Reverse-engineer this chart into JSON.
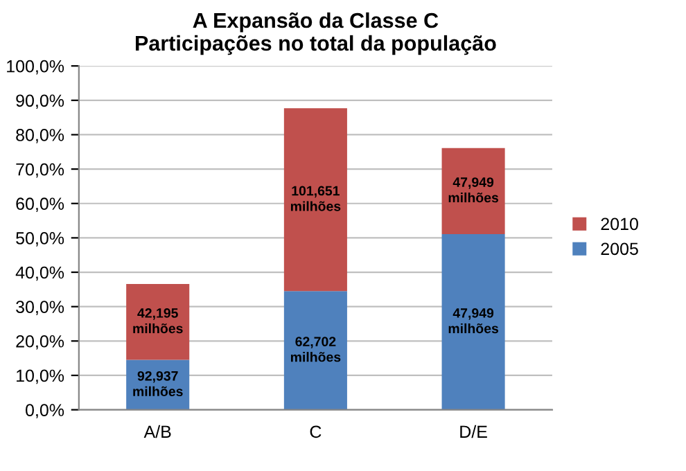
{
  "chart_data": {
    "type": "bar",
    "title": "A Expansão da Classe C\nParticipações no total da população",
    "categories": [
      "A/B",
      "C",
      "D/E"
    ],
    "stacked": true,
    "series": [
      {
        "name": "2005",
        "color": "#4f81bd",
        "values": [
          14.5,
          34.5,
          51.1
        ]
      },
      {
        "name": "2010",
        "color": "#c0504d",
        "values": [
          22.1,
          53.2,
          25.0
        ]
      }
    ],
    "annotations": [
      "92,937\nmilhões",
      "62,702\nmilhões",
      "47,949\nmilhões",
      "42,195\nmilhões",
      "101,651\nmilhões",
      "47,949\nmilhões"
    ],
    "ylim": [
      0,
      100
    ],
    "yticks": [
      {
        "value": 0,
        "label": "0,0%"
      },
      {
        "value": 10,
        "label": "10,0%"
      },
      {
        "value": 20,
        "label": "20,0%"
      },
      {
        "value": 30,
        "label": "30,0%"
      },
      {
        "value": 40,
        "label": "40,0%"
      },
      {
        "value": 50,
        "label": "50,0%"
      },
      {
        "value": 60,
        "label": "60,0%"
      },
      {
        "value": 70,
        "label": "70,0%"
      },
      {
        "value": 80,
        "label": "80,0%"
      },
      {
        "value": 90,
        "label": "90,0%"
      },
      {
        "value": 100,
        "label": "100,0%"
      }
    ],
    "grid": "y",
    "legend": "right"
  }
}
